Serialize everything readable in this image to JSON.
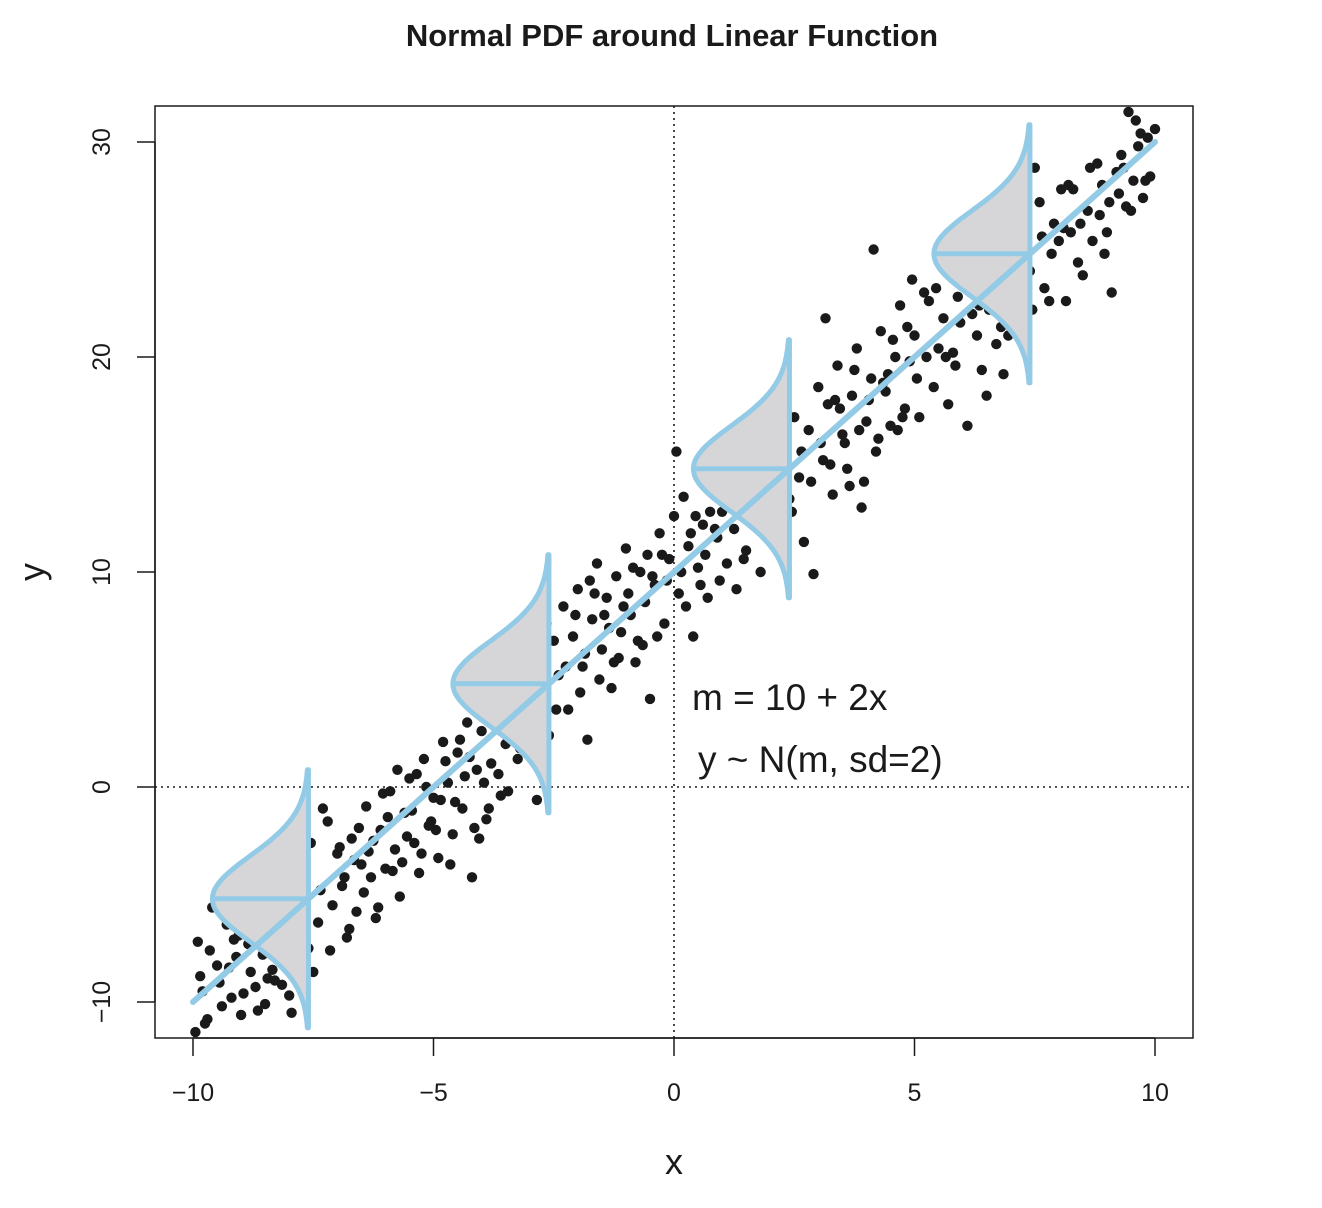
{
  "chart_data": {
    "type": "scatter",
    "title": "Normal PDF around Linear Function",
    "xlabel": "x",
    "ylabel": "y",
    "xlim": [
      -10.8,
      10.8
    ],
    "ylim": [
      -11.5,
      31.5
    ],
    "x_ticks": [
      -10,
      -5,
      0,
      5,
      10
    ],
    "x_tick_labels": [
      "−10",
      "−5",
      "0",
      "5",
      "10"
    ],
    "y_ticks": [
      -10,
      0,
      10,
      20,
      30
    ],
    "y_tick_labels": [
      "−10",
      "0",
      "10",
      "20",
      "30"
    ],
    "grid": false,
    "reference_lines": {
      "x": 0,
      "y": 0,
      "style": "dotted"
    },
    "colors": {
      "points": "#1a1a1a",
      "line": "#93cbe6",
      "density_fill": "#d6d6d9",
      "axes": "#1a1a1a"
    },
    "mean_line": {
      "intercept": 10,
      "slope": 2,
      "x_range": [
        -10,
        10
      ]
    },
    "density_curves": {
      "centers_x": [
        -7.6,
        -2.6,
        2.4,
        7.4
      ],
      "sd": 2,
      "half_range_sd": 3
    },
    "annotations": [
      "m = 10 + 2x",
      "y ~ N(m, sd=2)"
    ],
    "points": [
      [
        -9.9,
        -7.2
      ],
      [
        -9.8,
        -9.5
      ],
      [
        -9.7,
        -10.8
      ],
      [
        -9.6,
        -5.6
      ],
      [
        -9.5,
        -8.3
      ],
      [
        -9.4,
        -10.2
      ],
      [
        -9.3,
        -6.4
      ],
      [
        -9.2,
        -9.8
      ],
      [
        -9.1,
        -7.9
      ],
      [
        -9.0,
        -10.6
      ],
      [
        -8.9,
        -5.9
      ],
      [
        -8.8,
        -8.6
      ],
      [
        -8.7,
        -9.3
      ],
      [
        -8.6,
        -6.8
      ],
      [
        -8.5,
        -10.1
      ],
      [
        -8.4,
        -7.4
      ],
      [
        -8.3,
        -9.0
      ],
      [
        -8.2,
        -6.2
      ],
      [
        -8.1,
        -8.1
      ],
      [
        -8.0,
        -9.7
      ],
      [
        -9.85,
        -8.8
      ],
      [
        -9.65,
        -7.6
      ],
      [
        -9.45,
        -9.1
      ],
      [
        -9.25,
        -8.4
      ],
      [
        -9.05,
        -6.9
      ],
      [
        -8.85,
        -7.3
      ],
      [
        -8.65,
        -10.4
      ],
      [
        -8.45,
        -8.9
      ],
      [
        -9.95,
        -11.4
      ],
      [
        -9.75,
        -11.0
      ],
      [
        -7.9,
        -5.2
      ],
      [
        -7.6,
        -7.5
      ],
      [
        -7.4,
        -6.3
      ],
      [
        -7.2,
        -1.6
      ],
      [
        -7.0,
        -3.1
      ],
      [
        -6.9,
        -4.6
      ],
      [
        -6.8,
        -7.0
      ],
      [
        -6.7,
        -2.4
      ],
      [
        -6.6,
        -5.8
      ],
      [
        -6.5,
        -3.6
      ],
      [
        -6.4,
        -0.9
      ],
      [
        -6.3,
        -4.2
      ],
      [
        -6.2,
        -6.1
      ],
      [
        -6.1,
        -2.0
      ],
      [
        -6.0,
        -3.8
      ],
      [
        -5.9,
        -0.2
      ],
      [
        -5.8,
        -2.9
      ],
      [
        -5.7,
        -5.1
      ],
      [
        -5.6,
        -1.2
      ],
      [
        -5.5,
        0.4
      ],
      [
        -5.4,
        -2.6
      ],
      [
        -5.3,
        -4.0
      ],
      [
        -5.2,
        1.3
      ],
      [
        -5.1,
        -1.8
      ],
      [
        -5.0,
        -0.5
      ],
      [
        -4.9,
        -3.3
      ],
      [
        -4.8,
        2.1
      ],
      [
        -4.7,
        0.2
      ],
      [
        -4.6,
        -2.2
      ],
      [
        -4.5,
        1.6
      ],
      [
        -4.4,
        -1.0
      ],
      [
        -4.3,
        3.0
      ],
      [
        -4.2,
        -4.2
      ],
      [
        -4.1,
        0.8
      ],
      [
        -4.0,
        2.6
      ],
      [
        -3.9,
        -1.5
      ],
      [
        -3.8,
        1.1
      ],
      [
        -3.7,
        3.4
      ],
      [
        -3.6,
        -0.4
      ],
      [
        -3.5,
        2.0
      ],
      [
        -7.5,
        -8.6
      ],
      [
        -7.3,
        -1.0
      ],
      [
        -7.1,
        -5.5
      ],
      [
        -6.95,
        -2.8
      ],
      [
        -6.75,
        -6.6
      ],
      [
        -6.55,
        -1.9
      ],
      [
        -6.35,
        -3.0
      ],
      [
        -6.15,
        -5.6
      ],
      [
        -5.95,
        -1.4
      ],
      [
        -5.75,
        0.8
      ],
      [
        -5.65,
        -3.5
      ],
      [
        -5.45,
        -1.1
      ],
      [
        -5.25,
        -3.1
      ],
      [
        -5.15,
        0.0
      ],
      [
        -4.95,
        -2.0
      ],
      [
        -4.75,
        1.2
      ],
      [
        -4.55,
        -0.7
      ],
      [
        -4.35,
        0.5
      ],
      [
        -4.15,
        -1.9
      ],
      [
        -3.95,
        0.2
      ],
      [
        -3.4,
        4.3
      ],
      [
        -3.2,
        1.8
      ],
      [
        -3.0,
        5.6
      ],
      [
        -2.9,
        3.0
      ],
      [
        -2.8,
        6.2
      ],
      [
        -2.6,
        2.4
      ],
      [
        -2.4,
        5.2
      ],
      [
        -2.3,
        8.4
      ],
      [
        -2.2,
        3.6
      ],
      [
        -2.1,
        7.0
      ],
      [
        -2.0,
        9.2
      ],
      [
        -1.9,
        5.6
      ],
      [
        -1.8,
        2.2
      ],
      [
        -1.7,
        7.8
      ],
      [
        -1.6,
        10.4
      ],
      [
        -1.5,
        6.4
      ],
      [
        -1.4,
        8.8
      ],
      [
        -1.3,
        4.6
      ],
      [
        -1.2,
        9.8
      ],
      [
        -1.1,
        7.2
      ],
      [
        -1.0,
        11.1
      ],
      [
        -0.9,
        8.0
      ],
      [
        -0.8,
        5.8
      ],
      [
        -0.7,
        10.0
      ],
      [
        -0.6,
        8.6
      ],
      [
        -0.5,
        4.1
      ],
      [
        -0.4,
        9.4
      ],
      [
        -0.3,
        11.8
      ],
      [
        -0.2,
        7.6
      ],
      [
        -0.1,
        10.6
      ],
      [
        0.0,
        12.6
      ],
      [
        0.1,
        9.0
      ],
      [
        0.2,
        13.5
      ],
      [
        0.3,
        11.2
      ],
      [
        0.4,
        7.0
      ],
      [
        0.5,
        10.2
      ],
      [
        0.6,
        12.2
      ],
      [
        0.7,
        8.8
      ],
      [
        0.8,
        14.0
      ],
      [
        0.9,
        11.6
      ],
      [
        -3.3,
        2.8
      ],
      [
        -3.1,
        4.8
      ],
      [
        -2.7,
        4.2
      ],
      [
        -2.5,
        6.8
      ],
      [
        -1.95,
        4.4
      ],
      [
        -1.75,
        9.6
      ],
      [
        -1.55,
        5.0
      ],
      [
        -1.35,
        7.4
      ],
      [
        -1.15,
        6.0
      ],
      [
        -0.95,
        9.0
      ],
      [
        -0.75,
        6.8
      ],
      [
        -0.55,
        10.8
      ],
      [
        -0.35,
        7.0
      ],
      [
        -0.15,
        9.6
      ],
      [
        0.05,
        15.6
      ],
      [
        0.25,
        8.4
      ],
      [
        0.45,
        12.6
      ],
      [
        0.65,
        10.8
      ],
      [
        0.85,
        12.0
      ],
      [
        0.95,
        9.6
      ],
      [
        1.0,
        12.8
      ],
      [
        1.1,
        10.4
      ],
      [
        1.2,
        14.6
      ],
      [
        1.3,
        9.2
      ],
      [
        1.4,
        13.2
      ],
      [
        1.5,
        11.0
      ],
      [
        1.6,
        15.4
      ],
      [
        1.7,
        12.4
      ],
      [
        1.8,
        10.0
      ],
      [
        1.9,
        14.0
      ],
      [
        2.0,
        16.2
      ],
      [
        2.1,
        12.6
      ],
      [
        2.2,
        11.2
      ],
      [
        2.3,
        15.0
      ],
      [
        2.4,
        13.4
      ],
      [
        2.5,
        17.2
      ],
      [
        2.6,
        14.4
      ],
      [
        2.7,
        11.4
      ],
      [
        2.8,
        16.6
      ],
      [
        2.9,
        9.9
      ],
      [
        3.0,
        18.6
      ],
      [
        3.1,
        15.2
      ],
      [
        3.2,
        17.8
      ],
      [
        3.3,
        13.6
      ],
      [
        3.4,
        19.6
      ],
      [
        3.5,
        16.4
      ],
      [
        3.6,
        14.8
      ],
      [
        3.7,
        18.2
      ],
      [
        3.8,
        20.4
      ],
      [
        3.9,
        13.0
      ],
      [
        4.0,
        17.0
      ],
      [
        4.1,
        19.0
      ],
      [
        4.2,
        15.6
      ],
      [
        4.3,
        21.2
      ],
      [
        4.4,
        18.4
      ],
      [
        4.5,
        16.8
      ],
      [
        4.6,
        20.0
      ],
      [
        4.7,
        22.4
      ],
      [
        4.8,
        17.6
      ],
      [
        4.9,
        19.8
      ],
      [
        3.15,
        21.8
      ],
      [
        3.35,
        18.0
      ],
      [
        3.55,
        16.0
      ],
      [
        3.75,
        19.4
      ],
      [
        3.95,
        14.2
      ],
      [
        4.15,
        25.0
      ],
      [
        4.35,
        18.8
      ],
      [
        4.55,
        20.8
      ],
      [
        4.75,
        17.2
      ],
      [
        4.95,
        23.6
      ],
      [
        5.0,
        21.0
      ],
      [
        5.2,
        23.0
      ],
      [
        5.4,
        18.6
      ],
      [
        5.6,
        21.8
      ],
      [
        5.8,
        20.2
      ],
      [
        6.0,
        24.2
      ],
      [
        6.2,
        22.0
      ],
      [
        6.4,
        19.4
      ],
      [
        6.6,
        23.4
      ],
      [
        6.8,
        21.4
      ],
      [
        7.0,
        22.6
      ],
      [
        7.2,
        25.8
      ],
      [
        7.4,
        24.0
      ],
      [
        7.6,
        27.2
      ],
      [
        7.8,
        22.6
      ],
      [
        8.0,
        25.4
      ],
      [
        8.2,
        28.0
      ],
      [
        8.4,
        24.4
      ],
      [
        8.6,
        26.8
      ],
      [
        8.8,
        29.0
      ],
      [
        9.0,
        25.8
      ],
      [
        9.2,
        28.6
      ],
      [
        9.4,
        27.0
      ],
      [
        9.6,
        31.0
      ],
      [
        9.8,
        28.2
      ],
      [
        10.0,
        30.6
      ],
      [
        9.1,
        23.0
      ],
      [
        8.5,
        23.8
      ],
      [
        7.9,
        26.2
      ],
      [
        7.5,
        28.8
      ],
      [
        5.1,
        17.2
      ],
      [
        5.3,
        22.6
      ],
      [
        5.5,
        20.4
      ],
      [
        5.7,
        17.8
      ],
      [
        5.9,
        22.8
      ],
      [
        6.1,
        16.8
      ],
      [
        6.3,
        21.0
      ],
      [
        6.5,
        18.2
      ],
      [
        6.7,
        20.6
      ],
      [
        6.9,
        24.6
      ],
      [
        7.1,
        23.0
      ],
      [
        7.3,
        20.8
      ],
      [
        7.7,
        23.2
      ],
      [
        8.1,
        26.0
      ],
      [
        8.3,
        27.8
      ],
      [
        8.7,
        25.4
      ],
      [
        8.9,
        28.0
      ],
      [
        9.3,
        29.4
      ],
      [
        9.5,
        26.8
      ],
      [
        9.7,
        30.4
      ],
      [
        9.9,
        28.4
      ],
      [
        9.45,
        31.4
      ],
      [
        9.85,
        30.2
      ],
      [
        8.95,
        24.8
      ],
      [
        8.15,
        22.6
      ],
      [
        7.65,
        25.6
      ],
      [
        6.85,
        19.2
      ],
      [
        5.85,
        19.6
      ],
      [
        9.25,
        27.6
      ],
      [
        9.65,
        29.8
      ],
      [
        -9.15,
        -7.1
      ],
      [
        -8.95,
        -9.6
      ],
      [
        -8.75,
        -6.5
      ],
      [
        -8.55,
        -7.8
      ],
      [
        -8.35,
        -8.5
      ],
      [
        -8.15,
        -9.2
      ],
      [
        -7.95,
        -10.5
      ],
      [
        -7.75,
        -3.9
      ],
      [
        -7.55,
        -2.6
      ],
      [
        -7.35,
        -4.8
      ],
      [
        -7.15,
        -7.6
      ],
      [
        -6.85,
        -4.2
      ],
      [
        -6.65,
        -3.4
      ],
      [
        -6.45,
        -4.9
      ],
      [
        -6.25,
        -2.5
      ],
      [
        -6.05,
        -0.3
      ],
      [
        -5.85,
        -3.9
      ],
      [
        -5.55,
        -2.3
      ],
      [
        -5.35,
        0.6
      ],
      [
        -5.05,
        -1.6
      ],
      [
        -4.85,
        -0.6
      ],
      [
        -4.65,
        -3.6
      ],
      [
        -4.45,
        2.2
      ],
      [
        -4.25,
        1.4
      ],
      [
        -4.05,
        -2.4
      ],
      [
        -3.85,
        -1.0
      ],
      [
        -3.65,
        0.6
      ],
      [
        -3.45,
        -0.2
      ],
      [
        -3.25,
        1.3
      ],
      [
        -3.05,
        3.8
      ],
      [
        -2.85,
        -0.6
      ],
      [
        -2.65,
        7.6
      ],
      [
        -2.45,
        3.6
      ],
      [
        -2.25,
        5.6
      ],
      [
        -2.05,
        8.0
      ],
      [
        -1.85,
        6.2
      ],
      [
        -1.65,
        9.0
      ],
      [
        -1.45,
        8.0
      ],
      [
        -1.25,
        5.8
      ],
      [
        -1.05,
        8.4
      ],
      [
        -0.85,
        10.2
      ],
      [
        -0.65,
        6.6
      ],
      [
        -0.45,
        9.8
      ],
      [
        -0.25,
        10.8
      ],
      [
        0.15,
        10.0
      ],
      [
        0.35,
        11.8
      ],
      [
        0.55,
        9.4
      ],
      [
        0.75,
        12.8
      ],
      [
        1.05,
        13.4
      ],
      [
        1.25,
        12.0
      ],
      [
        1.45,
        10.6
      ],
      [
        1.65,
        13.8
      ],
      [
        1.85,
        12.2
      ],
      [
        2.05,
        14.6
      ],
      [
        2.25,
        16.8
      ],
      [
        2.45,
        12.8
      ],
      [
        2.65,
        15.6
      ],
      [
        2.85,
        14.2
      ],
      [
        3.05,
        16.0
      ],
      [
        3.25,
        15.0
      ],
      [
        3.45,
        17.6
      ],
      [
        3.65,
        14.0
      ],
      [
        3.85,
        16.6
      ],
      [
        4.05,
        18.0
      ],
      [
        4.25,
        16.2
      ],
      [
        4.45,
        19.2
      ],
      [
        4.65,
        16.6
      ],
      [
        4.85,
        21.4
      ],
      [
        5.05,
        19.0
      ],
      [
        5.25,
        20.0
      ],
      [
        5.45,
        23.2
      ],
      [
        5.65,
        20.0
      ],
      [
        5.95,
        21.6
      ],
      [
        6.15,
        23.4
      ],
      [
        6.35,
        22.4
      ],
      [
        6.55,
        22.2
      ],
      [
        6.75,
        23.0
      ],
      [
        6.95,
        21.0
      ],
      [
        7.15,
        24.2
      ],
      [
        7.45,
        22.2
      ],
      [
        7.85,
        24.8
      ],
      [
        8.05,
        27.8
      ],
      [
        8.25,
        25.8
      ],
      [
        8.45,
        26.2
      ],
      [
        8.65,
        28.8
      ],
      [
        8.85,
        26.6
      ],
      [
        9.05,
        27.2
      ],
      [
        9.35,
        28.8
      ],
      [
        9.55,
        28.2
      ],
      [
        9.75,
        27.4
      ]
    ]
  }
}
